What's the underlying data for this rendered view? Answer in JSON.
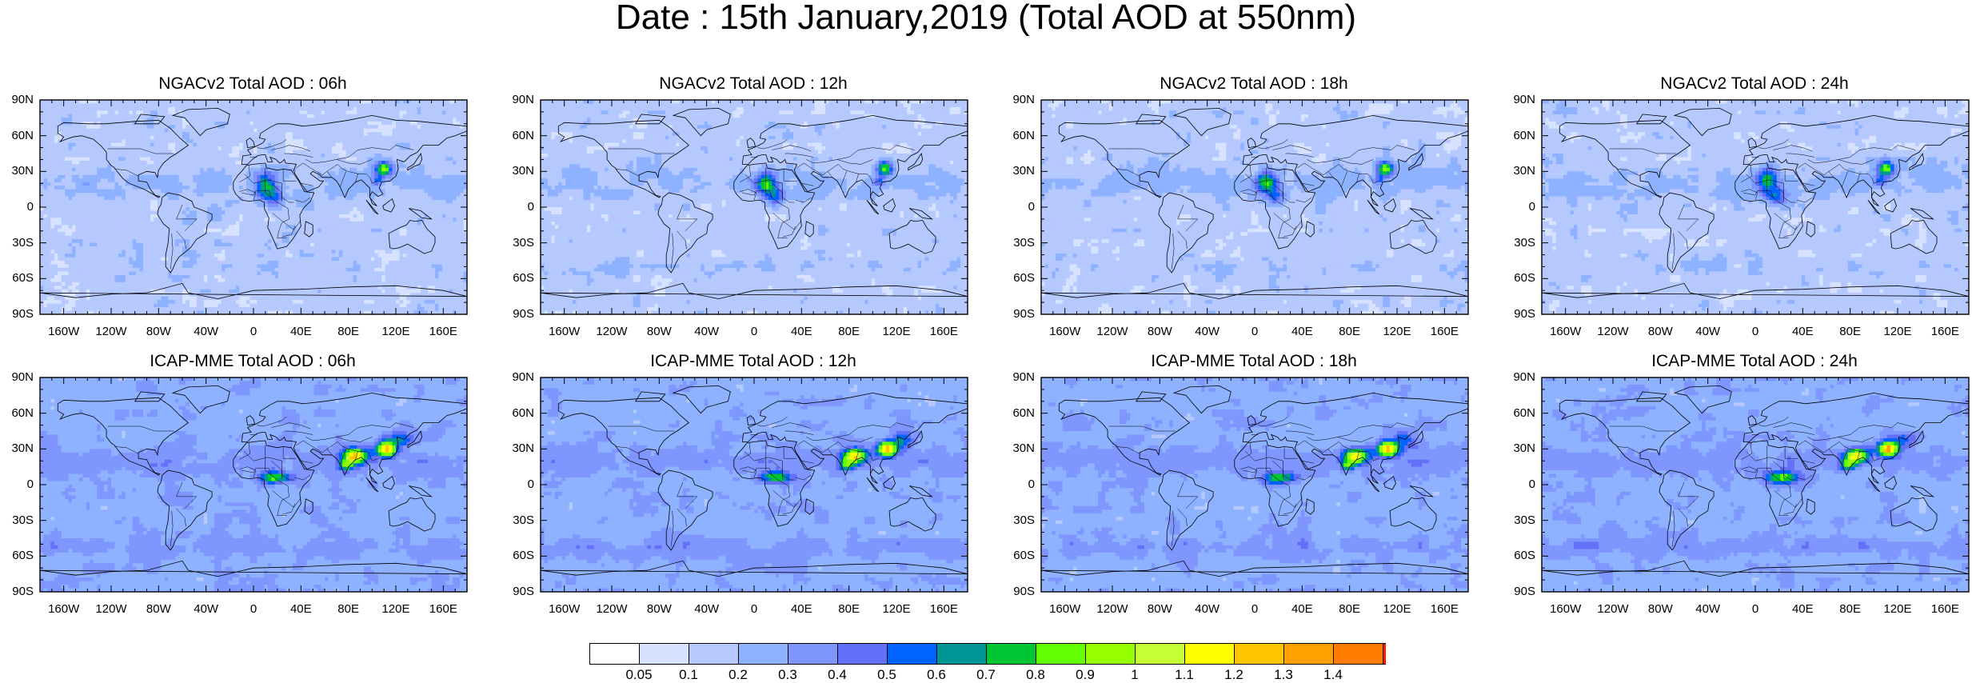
{
  "title": "Date : 15th January,2019 (Total AOD at 550nm)",
  "panels": [
    {
      "title": "NGACv2 Total AOD : 06h",
      "model": "ngac",
      "hour": 6
    },
    {
      "title": "NGACv2 Total AOD : 12h",
      "model": "ngac",
      "hour": 12
    },
    {
      "title": "NGACv2 Total AOD : 18h",
      "model": "ngac",
      "hour": 18
    },
    {
      "title": "NGACv2 Total AOD : 24h",
      "model": "ngac",
      "hour": 24
    },
    {
      "title": "ICAP-MME Total AOD : 06h",
      "model": "icap",
      "hour": 6
    },
    {
      "title": "ICAP-MME Total AOD : 12h",
      "model": "icap",
      "hour": 12
    },
    {
      "title": "ICAP-MME Total AOD : 18h",
      "model": "icap",
      "hour": 18
    },
    {
      "title": "ICAP-MME Total AOD : 24h",
      "model": "icap",
      "hour": 24
    }
  ],
  "lat_ticks": [
    "90N",
    "60N",
    "30N",
    "0",
    "30S",
    "60S",
    "90S"
  ],
  "lon_ticks": [
    "160W",
    "120W",
    "80W",
    "40W",
    "0",
    "40E",
    "80E",
    "120E",
    "160E"
  ],
  "colorbar": {
    "levels": [
      "0.05",
      "0.1",
      "0.2",
      "0.3",
      "0.4",
      "0.5",
      "0.6",
      "0.7",
      "0.8",
      "0.9",
      "1",
      "1.1",
      "1.2",
      "1.3",
      "1.4"
    ],
    "colors": [
      "#ffffff",
      "#d6e2ff",
      "#b5c9ff",
      "#8eb2ff",
      "#7f96ff",
      "#6370f8",
      "#0063ff",
      "#009696",
      "#00c633",
      "#63ff00",
      "#96ff00",
      "#c6ff33",
      "#ffff00",
      "#ffc600",
      "#ffa000",
      "#ff7c00",
      "#ff1900"
    ]
  }
}
